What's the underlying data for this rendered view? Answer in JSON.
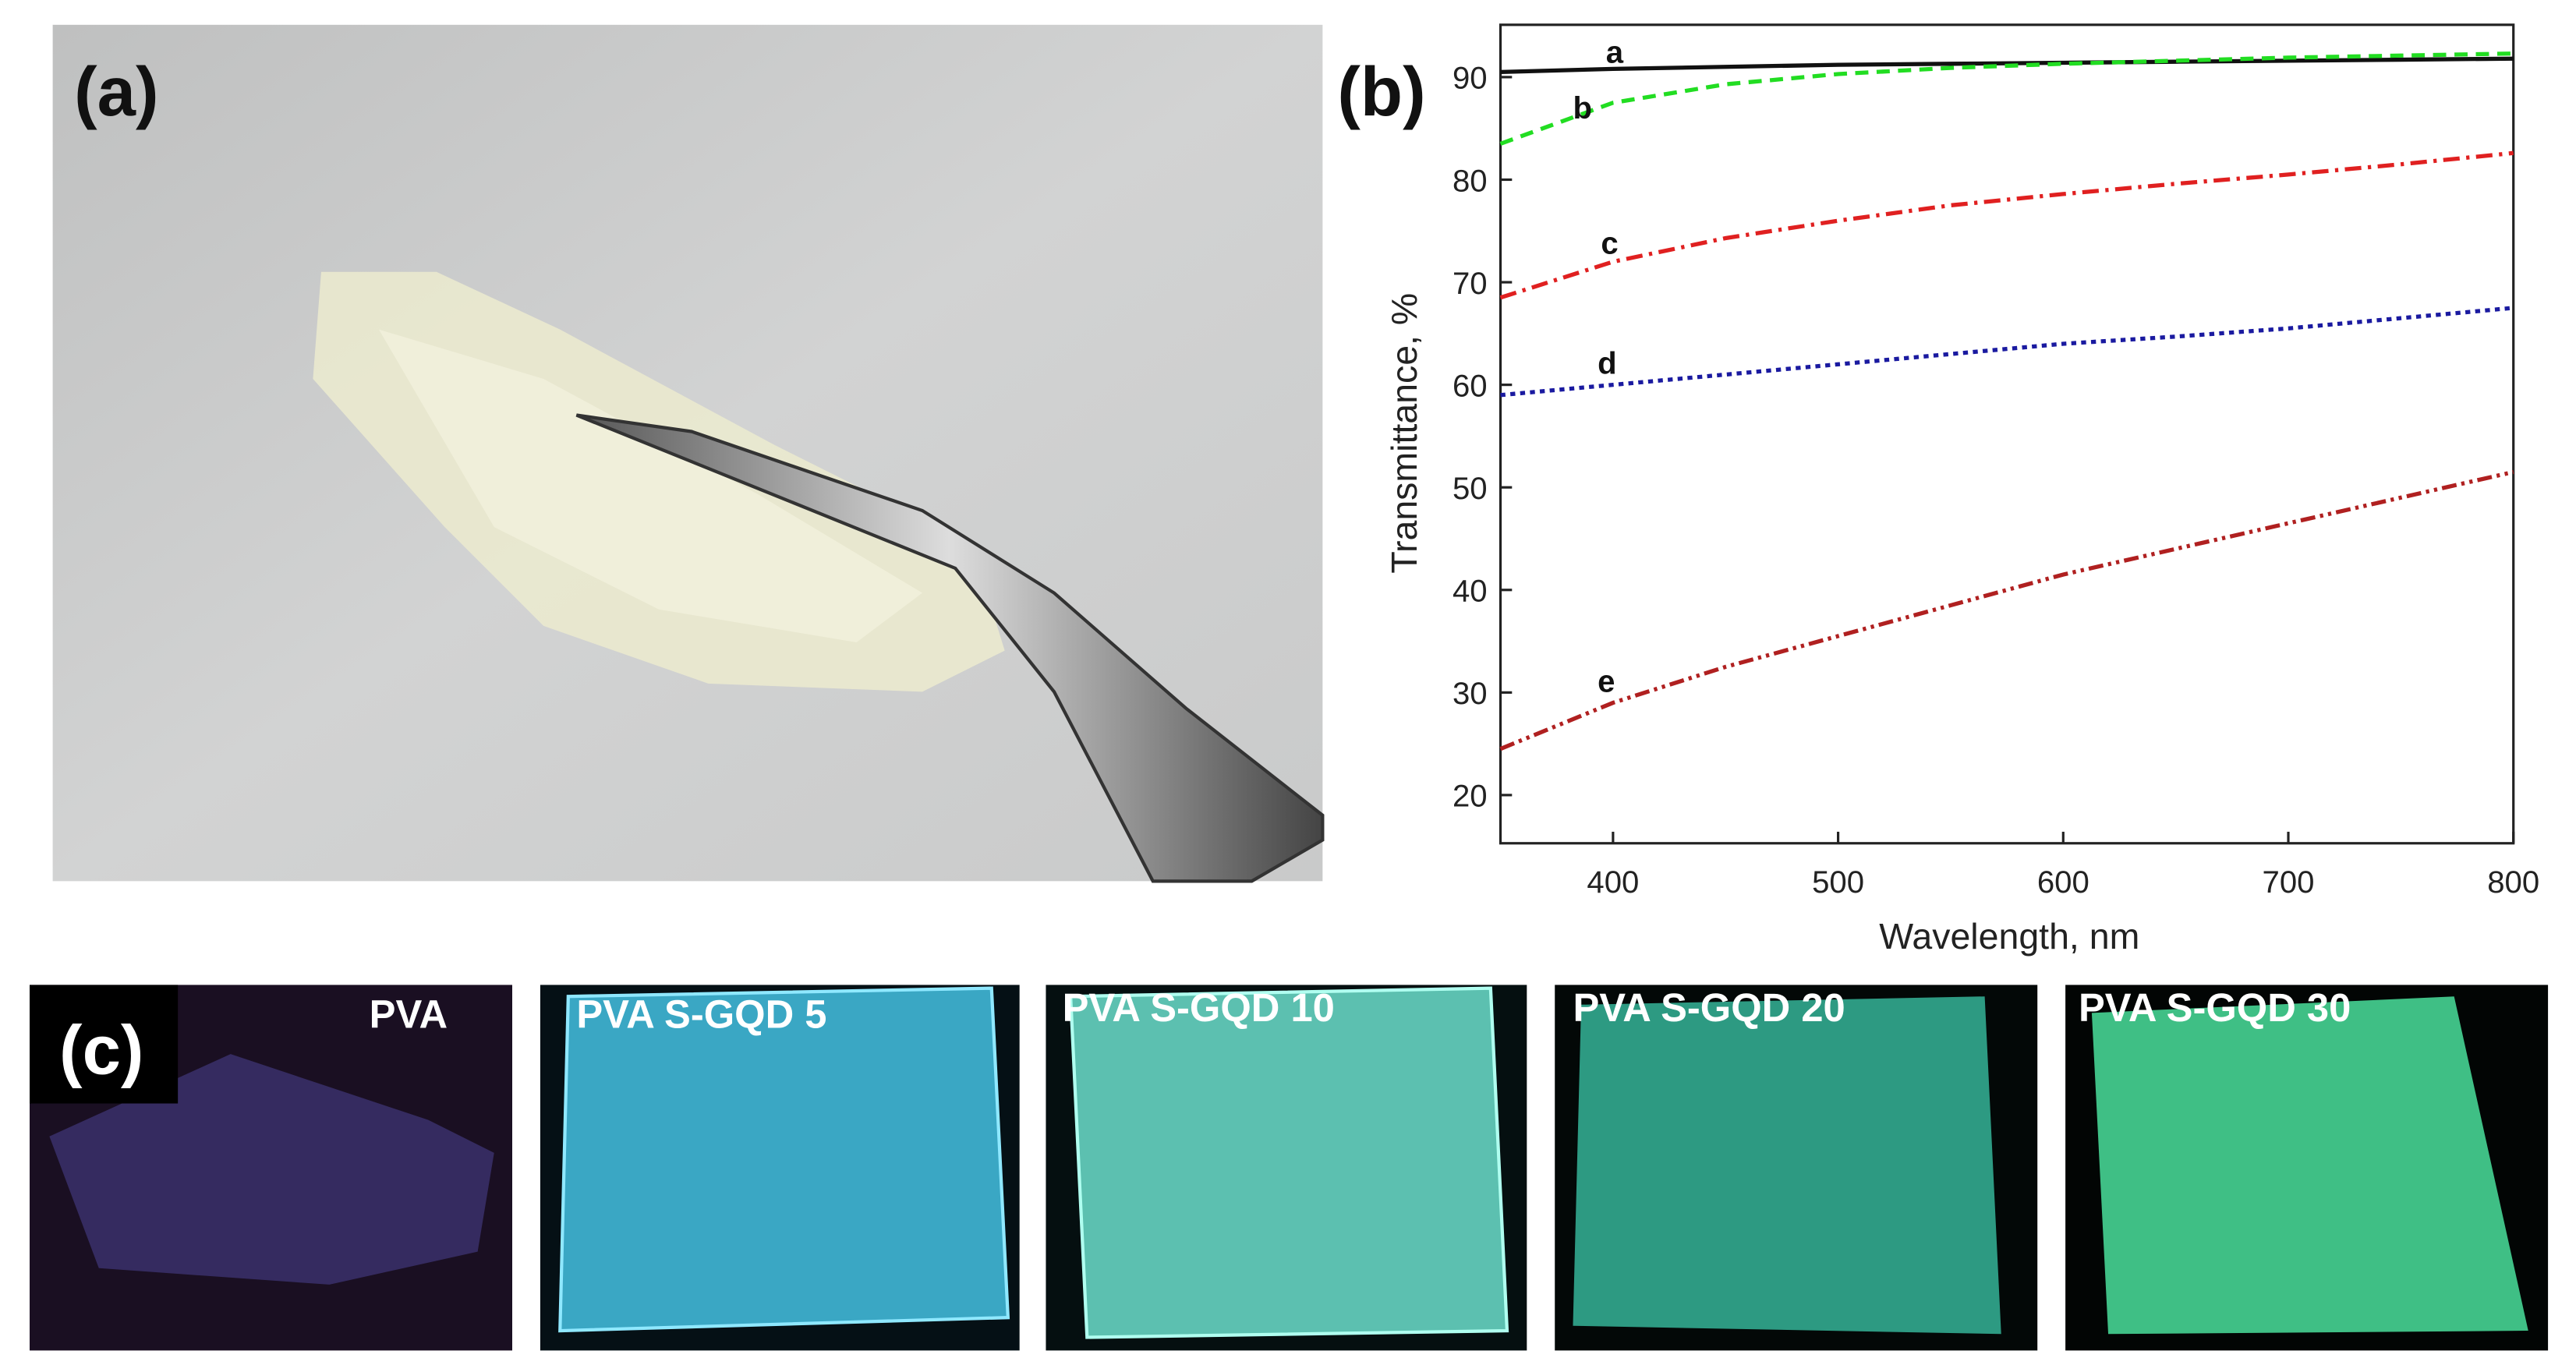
{
  "panel_labels": [
    "(a)",
    "(b)",
    "(c)"
  ],
  "photos": {
    "captions": [
      "PVA",
      "PVA S-GQD 5",
      "PVA S-GQD 10",
      "PVA S-GQD 20",
      "PVA S-GQD 30"
    ]
  },
  "chart_data": {
    "type": "line",
    "x_label": "Wavelength, nm",
    "y_label": "Transmittance, %",
    "x": [
      350,
      400,
      450,
      500,
      550,
      600,
      650,
      700,
      750,
      800
    ],
    "xlim": [
      350,
      800
    ],
    "xticks": [
      400,
      500,
      600,
      700,
      800
    ],
    "ylim": [
      15.3,
      95.1
    ],
    "yticks": [
      20,
      30,
      40,
      50,
      60,
      70,
      80,
      90
    ],
    "series": [
      {
        "name": "a",
        "color": "#111111",
        "values": [
          90.5,
          90.8,
          91,
          91.2,
          91.3,
          91.4,
          91.5,
          91.6,
          91.7,
          91.8
        ]
      },
      {
        "name": "b",
        "color": "#22dd22",
        "values": [
          83.5,
          87.5,
          89.3,
          90.3,
          90.9,
          91.3,
          91.6,
          91.9,
          92.1,
          92.3
        ]
      },
      {
        "name": "c",
        "color": "#e02020",
        "values": [
          68.5,
          72,
          74.3,
          76,
          77.5,
          78.6,
          79.6,
          80.5,
          81.5,
          82.6
        ]
      },
      {
        "name": "d",
        "color": "#1a1aa0",
        "values": [
          59,
          60,
          61,
          62,
          63,
          64,
          64.7,
          65.5,
          66.5,
          67.5
        ]
      },
      {
        "name": "e",
        "color": "#b02020",
        "values": [
          24.5,
          29,
          32.5,
          35.5,
          38.5,
          41.5,
          44,
          46.5,
          49,
          51.5
        ]
      }
    ]
  }
}
